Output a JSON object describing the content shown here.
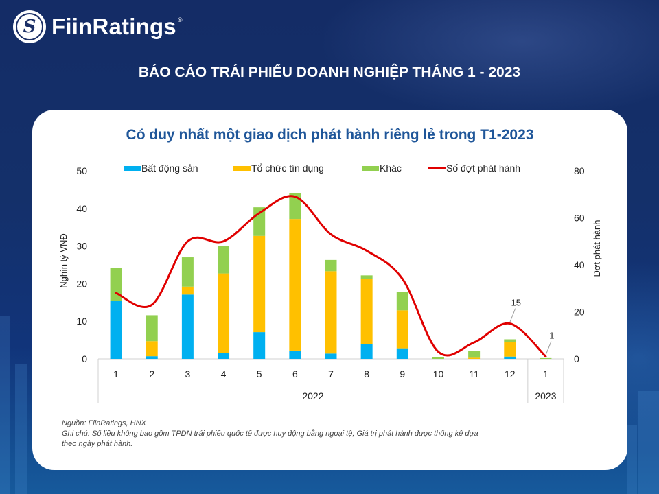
{
  "brand": {
    "name": "FiinRatings",
    "registered": "®",
    "logo_glyph": "S"
  },
  "report_title": "BÁO CÁO TRÁI PHIẾU DOANH NGHIỆP THÁNG 1 - 2023",
  "colors": {
    "bat_dong_san": "#00b0f0",
    "to_chuc_tin_dung": "#ffc000",
    "khac": "#92d050",
    "so_dot": "#e00000",
    "title_blue": "#1f5699"
  },
  "chart_data": {
    "type": "bar",
    "stacked": true,
    "title": "Có duy nhất một giao dịch phát hành riêng lẻ trong T1-2023",
    "categories": [
      "1",
      "2",
      "3",
      "4",
      "5",
      "6",
      "7",
      "8",
      "9",
      "10",
      "11",
      "12",
      "1"
    ],
    "category_groups": [
      {
        "label": "2022",
        "count": 12
      },
      {
        "label": "2023",
        "count": 1
      }
    ],
    "ylabel": "Nghìn tỷ VNĐ",
    "ylim": [
      0,
      50
    ],
    "yticks": [
      "0",
      "10",
      "20",
      "30",
      "40",
      "50"
    ],
    "y2label": "Đợt phát hành",
    "y2lim": [
      0,
      80
    ],
    "y2ticks": [
      "0",
      "20",
      "40",
      "60",
      "80"
    ],
    "legend_position": "top",
    "grid": false,
    "series": [
      {
        "name": "Bất động sản",
        "type": "bar",
        "axis": "left",
        "values": [
          15.5,
          0.7,
          17.1,
          1.5,
          7.1,
          2.2,
          1.4,
          3.9,
          2.8,
          0.0,
          0.0,
          0.6,
          0.0
        ]
      },
      {
        "name": "Tổ chức tín dụng",
        "type": "bar",
        "axis": "left",
        "values": [
          0.0,
          4.0,
          2.1,
          21.2,
          25.6,
          35.0,
          21.9,
          17.3,
          10.1,
          0.0,
          0.3,
          3.8,
          0.0
        ]
      },
      {
        "name": "Khác",
        "type": "bar",
        "axis": "left",
        "values": [
          8.6,
          6.9,
          7.8,
          7.3,
          7.6,
          6.8,
          3.0,
          1.0,
          4.8,
          0.4,
          1.8,
          0.8,
          0.2
        ]
      },
      {
        "name": "Số đợt phát hành",
        "type": "line",
        "axis": "right",
        "smooth": true,
        "values": [
          28,
          23,
          50,
          50,
          62,
          69,
          53,
          46,
          34,
          3,
          7,
          15,
          1
        ]
      }
    ],
    "annotations": [
      {
        "series": "Số đợt phát hành",
        "index": 11,
        "label": "15"
      },
      {
        "series": "Số đợt phát hành",
        "index": 12,
        "label": "1"
      }
    ]
  },
  "notes": {
    "source": "Nguồn: FiinRatings, HNX",
    "remark_line1": "Ghi chú: Số liệu không bao gồm TPDN trái phiếu quốc tế được huy động bằng ngoại tệ; Giá trị phát hành được thống kê dựa",
    "remark_line2": "theo ngày phát hành."
  }
}
